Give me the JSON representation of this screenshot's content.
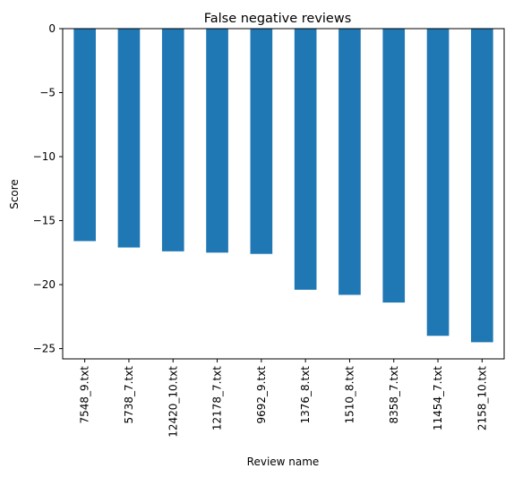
{
  "chart_data": {
    "type": "bar",
    "title": "False negative reviews",
    "xlabel": "Review name",
    "ylabel": "Score",
    "categories": [
      "7548_9.txt",
      "5738_7.txt",
      "12420_10.txt",
      "12178_7.txt",
      "9692_9.txt",
      "1376_8.txt",
      "1510_8.txt",
      "8358_7.txt",
      "11454_7.txt",
      "2158_10.txt"
    ],
    "values": [
      -16.6,
      -17.1,
      -17.4,
      -17.5,
      -17.6,
      -20.4,
      -20.8,
      -21.4,
      -24.0,
      -24.5
    ],
    "ylim": [
      -25.8,
      0
    ],
    "yticks": [
      0,
      -5,
      -10,
      -15,
      -20,
      -25
    ],
    "ytick_labels": [
      "0",
      "−5",
      "−10",
      "−15",
      "−20",
      "−25"
    ],
    "bar_color": "#1f77b4",
    "grid": false,
    "legend": "none"
  }
}
